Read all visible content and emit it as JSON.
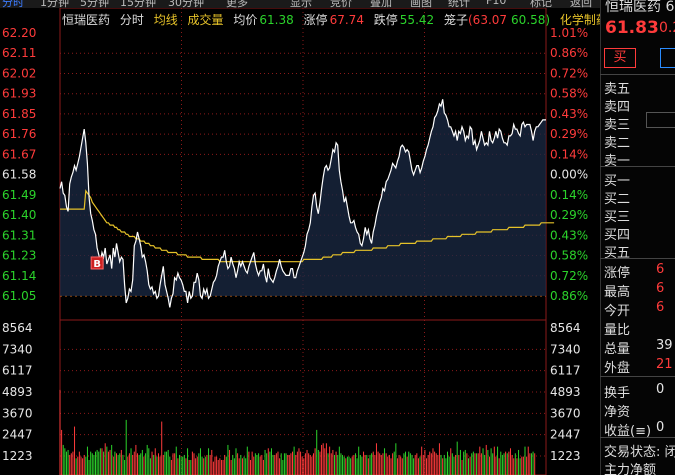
{
  "toolbar": {
    "items": [
      "分时",
      "1分钟",
      "5分钟",
      "15分钟",
      "30分钟",
      "更多",
      "显示",
      "竞价",
      "叠加",
      "画图",
      "统计",
      "F10",
      "标记",
      "返回"
    ]
  },
  "header": {
    "stock_name": "恒瑞医药",
    "mode": "分时",
    "avg_line": "均线",
    "volume": "成交量",
    "avg_price_label": "均价",
    "avg_price": "61.38",
    "limit_up_label": "涨停",
    "limit_up": "67.74",
    "limit_down_label": "跌停",
    "limit_down": "55.42",
    "cage_label": "笼子",
    "cage_low": "(63.07",
    "cage_high": "60.58)",
    "tool": "化学制药"
  },
  "colors": {
    "up": "#ff3b3b",
    "down": "#2bd32b",
    "neutral": "#e6e6e6",
    "price_line": "#ffffff",
    "avg_line": "#e6c229",
    "grid": "#8b1a1a",
    "baseline": "#d46a1a",
    "accent_blue": "#2a8cff"
  },
  "price_axis": {
    "left": [
      "62.20",
      "62.11",
      "62.02",
      "61.93",
      "61.85",
      "61.76",
      "61.67",
      "61.58",
      "61.49",
      "61.40",
      "61.31",
      "61.23",
      "61.14",
      "61.05"
    ],
    "right": [
      "1.01%",
      "0.86%",
      "0.72%",
      "0.58%",
      "0.43%",
      "0.29%",
      "0.14%",
      "0.00%",
      "0.14%",
      "0.29%",
      "0.43%",
      "0.58%",
      "0.72%",
      "0.86%"
    ],
    "ref_price": 61.58,
    "min": 61.05,
    "max": 62.2
  },
  "volume_axis": {
    "left": [
      "8564",
      "7340",
      "6117",
      "4893",
      "3670",
      "2447",
      "1223"
    ],
    "right": [
      "8564",
      "7340",
      "6117",
      "4893",
      "3670",
      "2447",
      "1223"
    ],
    "max": 8564
  },
  "marker": {
    "label": "B",
    "minute": 23
  },
  "chart_data": {
    "type": "line",
    "x_unit": "minute index",
    "series": [
      {
        "name": "price",
        "values": [
          61.52,
          61.55,
          61.5,
          61.49,
          61.44,
          61.42,
          61.54,
          61.57,
          61.59,
          61.62,
          61.6,
          61.63,
          61.66,
          61.7,
          61.74,
          61.78,
          61.72,
          61.63,
          61.48,
          61.41,
          61.38,
          61.34,
          61.32,
          61.26,
          61.23,
          61.2,
          61.24,
          61.22,
          61.26,
          61.19,
          61.21,
          61.23,
          61.17,
          61.26,
          61.22,
          61.28,
          61.24,
          61.2,
          61.22,
          61.21,
          61.1,
          61.02,
          61.04,
          61.08,
          61.07,
          61.12,
          61.27,
          61.29,
          61.33,
          61.3,
          61.27,
          61.22,
          61.23,
          61.2,
          61.16,
          61.1,
          61.08,
          61.09,
          61.06,
          61.07,
          61.04,
          61.05,
          61.1,
          61.14,
          61.18,
          61.1,
          61.07,
          61.04,
          61.0,
          61.04,
          61.06,
          61.13,
          61.12,
          61.15,
          61.13,
          61.12,
          61.1,
          61.07,
          61.07,
          61.02,
          61.07,
          61.04,
          61.05,
          61.11,
          61.11,
          61.15,
          61.12,
          61.05,
          61.04,
          61.08,
          61.06,
          61.08,
          61.04,
          61.05,
          61.08,
          61.11,
          61.12,
          61.14,
          61.18,
          61.2,
          61.22,
          61.22,
          61.25,
          61.2,
          61.17,
          61.18,
          61.22,
          61.19,
          61.17,
          61.13,
          61.16,
          61.2,
          61.18,
          61.2,
          61.18,
          61.16,
          61.15,
          61.18,
          61.2,
          61.22,
          61.24,
          61.19,
          61.16,
          61.14,
          61.16,
          61.16,
          61.19,
          61.14,
          61.11,
          61.17,
          61.13,
          61.12,
          61.11,
          61.13,
          61.16,
          61.18,
          61.21,
          61.18,
          61.16,
          61.15,
          61.14,
          61.14,
          61.14,
          61.17,
          61.17,
          61.13,
          61.13,
          61.16,
          61.18,
          61.2,
          61.22,
          61.24,
          61.27,
          61.32,
          61.34,
          61.37,
          61.44,
          61.49,
          61.5,
          61.44,
          61.41,
          61.46,
          61.52,
          61.57,
          61.61,
          61.62,
          61.6,
          61.61,
          61.65,
          61.69,
          61.68,
          61.72,
          61.71,
          61.6,
          61.55,
          61.51,
          61.46,
          61.48,
          61.44,
          61.4,
          61.37,
          61.37,
          61.38,
          61.35,
          61.33,
          61.32,
          61.28,
          61.27,
          61.3,
          61.35,
          61.32,
          61.34,
          61.3,
          61.28,
          61.33,
          61.36,
          61.4,
          61.43,
          61.46,
          61.48,
          61.52,
          61.51,
          61.55,
          61.56,
          61.58,
          61.6,
          61.63,
          61.62,
          61.61,
          61.64,
          61.66,
          61.7,
          61.71,
          61.7,
          61.68,
          61.69,
          61.68,
          61.64,
          61.6,
          61.58,
          61.6,
          61.62,
          61.62,
          61.59,
          61.61,
          61.64,
          61.66,
          61.69,
          61.71,
          61.74,
          61.77,
          61.79,
          61.83,
          61.84,
          61.86,
          61.89,
          61.88,
          61.91,
          61.85,
          61.84,
          61.82,
          61.79,
          61.79,
          61.77,
          61.75,
          61.77,
          61.73,
          61.77,
          61.76,
          61.79,
          61.77,
          61.73,
          61.75,
          61.74,
          61.79,
          61.78,
          61.71,
          61.73,
          61.69,
          61.71,
          61.73,
          61.77,
          61.74,
          61.71,
          61.72,
          61.71,
          61.77,
          61.73,
          61.72,
          61.74,
          61.77,
          61.74,
          61.78,
          61.77,
          61.74,
          61.72,
          61.72,
          61.71,
          61.75,
          61.75,
          61.76,
          61.8,
          61.78,
          61.78,
          61.76,
          61.75,
          61.8,
          61.81,
          61.79,
          61.8,
          61.8,
          61.8,
          61.77,
          61.73,
          61.77,
          61.79,
          61.79,
          61.8,
          61.81,
          61.82,
          61.82,
          61.82
        ]
      },
      {
        "name": "average",
        "values": [
          61.43,
          61.43,
          61.43,
          61.43,
          61.43,
          61.43,
          61.43,
          61.43,
          61.43,
          61.43,
          61.43,
          61.43,
          61.43,
          61.43,
          61.43,
          61.43,
          61.51,
          61.5,
          61.49,
          61.48,
          61.46,
          61.45,
          61.44,
          61.43,
          61.42,
          61.41,
          61.4,
          61.39,
          61.38,
          61.37,
          61.37,
          61.36,
          61.36,
          61.36,
          61.35,
          61.35,
          61.34,
          61.34,
          61.33,
          61.33,
          61.33,
          61.32,
          61.32,
          61.31,
          61.31,
          61.31,
          61.31,
          61.3,
          61.3,
          61.3,
          61.29,
          61.29,
          61.29,
          61.28,
          61.28,
          61.28,
          61.27,
          61.27,
          61.27,
          61.26,
          61.26,
          61.26,
          61.26,
          61.25,
          61.25,
          61.25,
          61.25,
          61.24,
          61.24,
          61.24,
          61.24,
          61.24,
          61.24,
          61.23,
          61.23,
          61.23,
          61.23,
          61.23,
          61.23,
          61.22,
          61.22,
          61.22,
          61.22,
          61.22,
          61.22,
          61.22,
          61.22,
          61.22,
          61.21,
          61.21,
          61.21,
          61.21,
          61.21,
          61.21,
          61.21,
          61.21,
          61.21,
          61.21,
          61.21,
          61.2,
          61.2,
          61.2,
          61.2,
          61.2,
          61.2,
          61.2,
          61.2,
          61.2,
          61.2,
          61.2,
          61.2,
          61.2,
          61.2,
          61.2,
          61.2,
          61.2,
          61.2,
          61.2,
          61.2,
          61.2,
          61.2,
          61.2,
          61.2,
          61.2,
          61.2,
          61.2,
          61.2,
          61.2,
          61.2,
          61.2,
          61.2,
          61.2,
          61.2,
          61.2,
          61.2,
          61.2,
          61.2,
          61.2,
          61.2,
          61.2,
          61.2,
          61.2,
          61.2,
          61.2,
          61.2,
          61.2,
          61.2,
          61.2,
          61.2,
          61.2,
          61.2,
          61.21,
          61.21,
          61.21,
          61.21,
          61.21,
          61.21,
          61.21,
          61.21,
          61.21,
          61.21,
          61.21,
          61.21,
          61.22,
          61.22,
          61.22,
          61.22,
          61.22,
          61.22,
          61.23,
          61.23,
          61.23,
          61.23,
          61.23,
          61.23,
          61.24,
          61.24,
          61.24,
          61.24,
          61.24,
          61.24,
          61.24,
          61.24,
          61.25,
          61.25,
          61.25,
          61.25,
          61.25,
          61.25,
          61.25,
          61.25,
          61.25,
          61.25,
          61.25,
          61.26,
          61.26,
          61.26,
          61.26,
          61.26,
          61.26,
          61.26,
          61.26,
          61.26,
          61.27,
          61.27,
          61.27,
          61.27,
          61.27,
          61.27,
          61.27,
          61.27,
          61.28,
          61.28,
          61.28,
          61.28,
          61.28,
          61.28,
          61.28,
          61.28,
          61.28,
          61.28,
          61.29,
          61.29,
          61.29,
          61.29,
          61.29,
          61.29,
          61.29,
          61.29,
          61.29,
          61.29,
          61.3,
          61.3,
          61.3,
          61.3,
          61.3,
          61.3,
          61.3,
          61.3,
          61.3,
          61.31,
          61.31,
          61.31,
          61.31,
          61.31,
          61.31,
          61.31,
          61.31,
          61.31,
          61.32,
          61.32,
          61.32,
          61.32,
          61.32,
          61.32,
          61.32,
          61.32,
          61.32,
          61.33,
          61.33,
          61.33,
          61.33,
          61.33,
          61.33,
          61.33,
          61.33,
          61.33,
          61.33,
          61.34,
          61.34,
          61.34,
          61.34,
          61.34,
          61.34,
          61.34,
          61.34,
          61.34,
          61.34,
          61.35,
          61.35,
          61.35,
          61.35,
          61.35,
          61.35,
          61.35,
          61.35,
          61.35,
          61.35,
          61.36,
          61.36,
          61.36,
          61.36,
          61.36,
          61.36,
          61.36,
          61.36,
          61.36,
          61.36,
          61.37,
          61.37,
          61.37,
          61.37,
          61.37,
          61.37,
          61.37,
          61.37,
          61.37
        ]
      }
    ],
    "volume": [
      5100,
      2700,
      1800,
      1600,
      1400,
      1500,
      1200,
      1300,
      1400,
      2900,
      1000,
      1100,
      1400,
      1100,
      1000,
      1200,
      1100,
      1700,
      900,
      1400,
      1300,
      1200,
      1400,
      1500,
      1400,
      1600,
      1600,
      1400,
      1900,
      1700,
      1400,
      1500,
      1800,
      1100,
      1400,
      1300,
      1200,
      1300,
      1500,
      1200,
      900,
      3300,
      1100,
      1300,
      1600,
      1200,
      1400,
      1800,
      1300,
      1200,
      1300,
      1500,
      1100,
      1300,
      1800,
      1600,
      1000,
      1400,
      1200,
      1600,
      1100,
      1300,
      1100,
      3200,
      1200,
      1400,
      1400,
      1500,
      1100,
      900,
      1300,
      1300,
      1700,
      1000,
      1200,
      1100,
      1100,
      1200,
      1000,
      1600,
      900,
      900,
      1400,
      1300,
      1000,
      1100,
      1300,
      1600,
      1100,
      1000,
      1100,
      1200,
      1600,
      1200,
      1500,
      800,
      1100,
      1100,
      900,
      1000,
      900,
      900,
      1200,
      1100,
      1800,
      1500,
      900,
      1200,
      1000,
      1600,
      1300,
      1000,
      1200,
      1000,
      1100,
      1000,
      1700,
      1400,
      900,
      1400,
      1100,
      1300,
      1200,
      1300,
      1100,
      1200,
      900,
      1500,
      1300,
      1600,
      1400,
      1600,
      1200,
      1200,
      1300,
      1400,
      1000,
      1300,
      900,
      1300,
      1300,
      1200,
      1200,
      1300,
      1400,
      1700,
      1200,
      1400,
      1600,
      1400,
      1100,
      1000,
      1300,
      1500,
      1300,
      1200,
      1100,
      1300,
      1600,
      2700,
      1500,
      1400,
      1800,
      1900,
      1600,
      1900,
      1300,
      1700,
      1300,
      1500,
      1200,
      1400,
      1200,
      1700,
      1300,
      1200,
      1100,
      1000,
      1100,
      1100,
      1000,
      1100,
      1200,
      1300,
      1000,
      1700,
      1200,
      1100,
      1400,
      1200,
      1200,
      1000,
      1200,
      1300,
      1400,
      1200,
      1900,
      1400,
      1300,
      1200,
      1300,
      1600,
      1300,
      1100,
      1200,
      1000,
      1300,
      1400,
      1900,
      1000,
      1200,
      1100,
      1000,
      1300,
      1400,
      1100,
      1400,
      1300,
      1200,
      1000,
      1200,
      1300,
      1000,
      1100,
      1700,
      1200,
      1500,
      1000,
      1200,
      1400,
      1300,
      1600,
      1400,
      1300,
      1200,
      1900,
      1200,
      1000,
      1200,
      1000,
      1400,
      1100,
      1600,
      1300,
      1100,
      1200,
      2000,
      1200,
      1500,
      900,
      1400,
      1500,
      1300,
      1000,
      1100,
      1300,
      1400,
      1300,
      1300,
      1300,
      1700,
      1300,
      1600,
      1200,
      1800,
      1500,
      1100,
      1600,
      1300,
      1700,
      1100,
      1700,
      1000,
      1400,
      1200,
      1300,
      1400,
      1300,
      1400,
      1600,
      1200,
      1000,
      1300,
      1000,
      1500,
      1000,
      1100,
      1100,
      1700,
      1100,
      1700,
      1300,
      1300,
      1400,
      1300
    ]
  },
  "right_panel": {
    "title": "恒瑞医药 6",
    "price": "61.83",
    "change": "0.2",
    "buy_label": "买",
    "asks": [
      "卖五",
      "卖四",
      "卖三",
      "卖二",
      "卖一"
    ],
    "bids": [
      "买一",
      "买二",
      "买三",
      "买四",
      "买五"
    ],
    "stats": [
      {
        "label": "涨停",
        "value": "6",
        "color": "up"
      },
      {
        "label": "最高",
        "value": "6",
        "color": "up"
      },
      {
        "label": "今开",
        "value": "6",
        "color": "up"
      },
      {
        "label": "量比",
        "value": "",
        "color": "neutral"
      },
      {
        "label": "总量",
        "value": "39",
        "color": "neutral"
      },
      {
        "label": "外盘",
        "value": "21",
        "color": "up"
      },
      {
        "label": "换手",
        "value": "0",
        "color": "neutral"
      },
      {
        "label": "净资",
        "value": "",
        "color": "neutral"
      },
      {
        "label": "收益(≡)",
        "value": "0",
        "color": "neutral"
      }
    ],
    "trade_status": "交易状态: 闭",
    "main_net": "主力净额"
  }
}
